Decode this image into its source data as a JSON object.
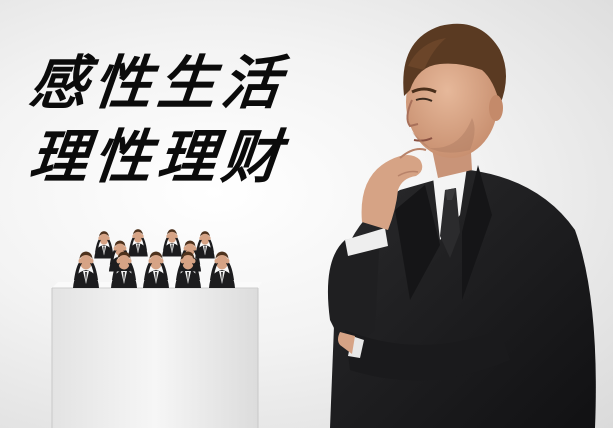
{
  "headline": {
    "line1": "感性生活",
    "line2": "理性理财"
  },
  "colors": {
    "background": "#ececec",
    "text": "#0b0b0b",
    "suit": "#1c1c1e",
    "skin": "#d9a98a",
    "hair": "#5a3a22",
    "pedestal": "#f1f1f1"
  }
}
